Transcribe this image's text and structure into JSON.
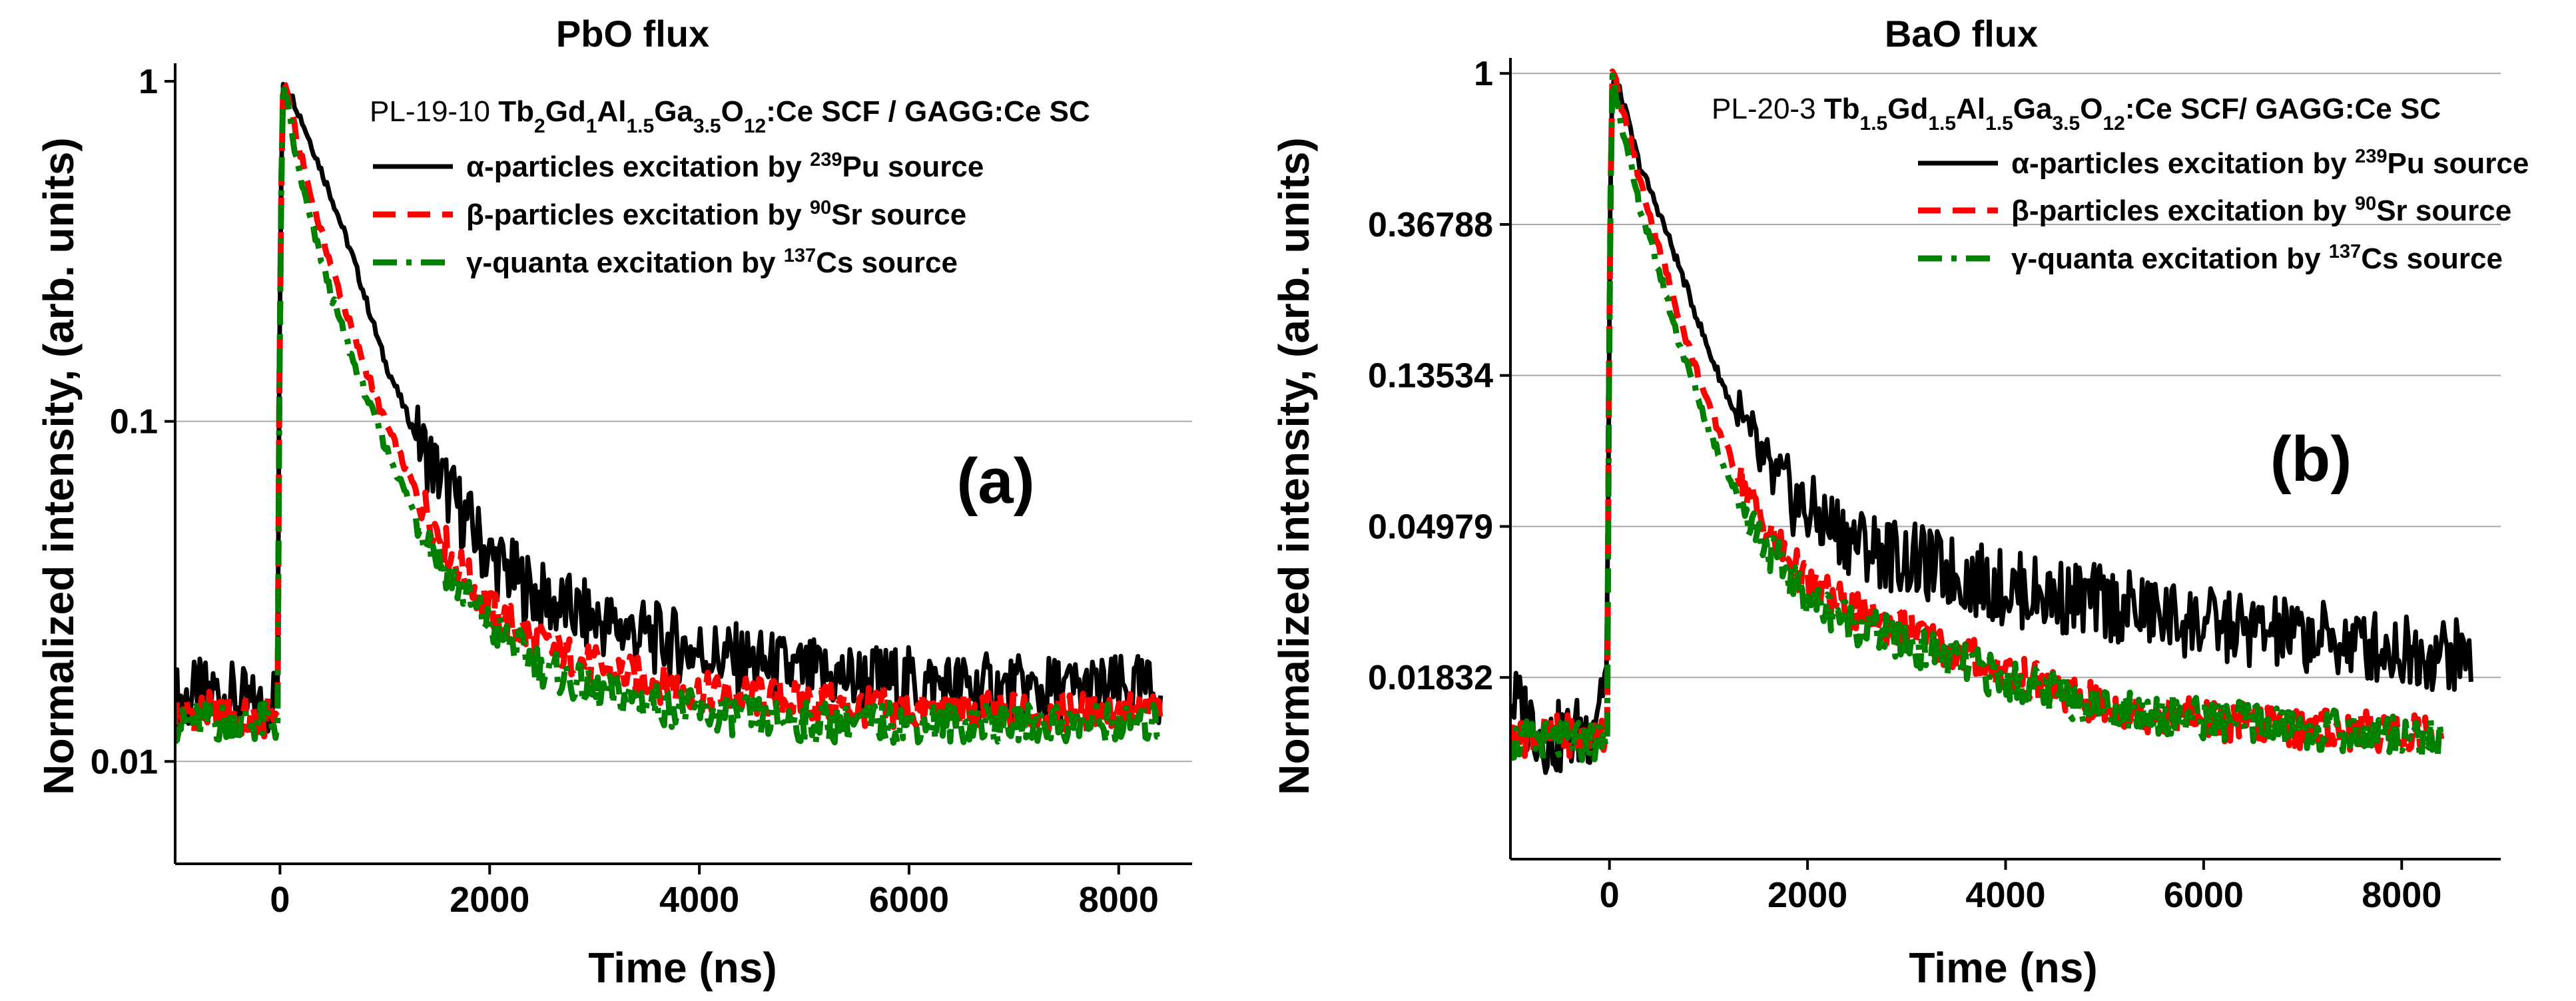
{
  "chart_data": [
    {
      "type": "line",
      "panel_label": "(a)",
      "title": "PbO flux",
      "xlabel": "Time (ns)",
      "ylabel": "Normalized intensity, (arb. units)",
      "xscale": "linear",
      "yscale": "log",
      "xlim": [
        -1000,
        8700
      ],
      "ylim": [
        0.005,
        1.08
      ],
      "x_ticks": [
        0,
        2000,
        4000,
        6000,
        8000
      ],
      "x_tick_labels": [
        "0",
        "2000",
        "4000",
        "6000",
        "8000"
      ],
      "y_ticks": [
        1,
        0.1,
        0.01
      ],
      "y_tick_labels": [
        "1",
        "0.1",
        "0.01"
      ],
      "grid": "horizontal",
      "sample_label": {
        "prefix": "PL-19-10 ",
        "formula": [
          {
            "t": "Tb",
            "s": ""
          },
          {
            "t": "2",
            "s": "sub"
          },
          {
            "t": "Gd",
            "s": ""
          },
          {
            "t": "1",
            "s": "sub"
          },
          {
            "t": "Al",
            "s": ""
          },
          {
            "t": "1.5",
            "s": "sub"
          },
          {
            "t": "Ga",
            "s": ""
          },
          {
            "t": "3.5",
            "s": "sub"
          },
          {
            "t": "O",
            "s": ""
          },
          {
            "t": "12",
            "s": "sub"
          },
          {
            "t": ":Ce SCF / GAGG:Ce SC",
            "s": ""
          }
        ]
      },
      "legend_position": "top-right",
      "series": [
        {
          "name": "alpha",
          "color": "#000000",
          "style": "solid",
          "legend": [
            {
              "t": "α-particles excitation by ",
              "s": ""
            },
            {
              "t": "239",
              "s": "sup"
            },
            {
              "t": "Pu source",
              "s": ""
            }
          ],
          "x": [
            -1000,
            -600,
            -200,
            -20,
            0,
            30,
            60,
            150,
            300,
            500,
            700,
            1000,
            1300,
            1600,
            2000,
            2500,
            3000,
            4000,
            5000,
            6000,
            7000,
            8000,
            8400
          ],
          "y": [
            0.015,
            0.016,
            0.014,
            0.016,
            0.35,
            1.0,
            0.97,
            0.85,
            0.65,
            0.45,
            0.3,
            0.15,
            0.09,
            0.063,
            0.04,
            0.03,
            0.026,
            0.021,
            0.018,
            0.017,
            0.016,
            0.016,
            0.016
          ]
        },
        {
          "name": "beta",
          "color": "#ff0000",
          "style": "dash",
          "legend": [
            {
              "t": "β-particles excitation by ",
              "s": ""
            },
            {
              "t": "90",
              "s": "sup"
            },
            {
              "t": "Sr source",
              "s": ""
            }
          ],
          "x": [
            -1000,
            -600,
            -200,
            -20,
            0,
            30,
            60,
            150,
            300,
            500,
            700,
            1000,
            1300,
            1600,
            2000,
            2500,
            3000,
            4000,
            5000,
            6000,
            7000,
            8000,
            8400
          ],
          "y": [
            0.014,
            0.014,
            0.013,
            0.014,
            0.3,
            1.0,
            0.95,
            0.7,
            0.45,
            0.28,
            0.18,
            0.1,
            0.062,
            0.042,
            0.028,
            0.022,
            0.019,
            0.016,
            0.015,
            0.014,
            0.014,
            0.014,
            0.014
          ]
        },
        {
          "name": "gamma",
          "color": "#008000",
          "style": "dashdot",
          "legend": [
            {
              "t": "γ-quanta excitation by ",
              "s": ""
            },
            {
              "t": "137",
              "s": "sup"
            },
            {
              "t": "Cs source",
              "s": ""
            }
          ],
          "x": [
            -1000,
            -600,
            -200,
            -20,
            0,
            30,
            60,
            150,
            300,
            500,
            700,
            1000,
            1300,
            1600,
            2000,
            2500,
            3000,
            4000,
            5000,
            6000,
            7000,
            8000,
            8400
          ],
          "y": [
            0.013,
            0.013,
            0.013,
            0.013,
            0.3,
            0.96,
            0.9,
            0.6,
            0.38,
            0.23,
            0.15,
            0.085,
            0.052,
            0.036,
            0.025,
            0.019,
            0.016,
            0.014,
            0.013,
            0.013,
            0.013,
            0.013,
            0.013
          ]
        }
      ]
    },
    {
      "type": "line",
      "panel_label": "(b)",
      "title": "BaO flux",
      "xlabel": "Time (ns)",
      "ylabel": "Normalized intensity, (arb. units)",
      "xscale": "linear",
      "yscale": "log",
      "xlim": [
        -1000,
        9000
      ],
      "ylim": [
        0.0055,
        1.06
      ],
      "x_ticks": [
        0,
        2000,
        4000,
        6000,
        8000
      ],
      "x_tick_labels": [
        "0",
        "2000",
        "4000",
        "6000",
        "8000"
      ],
      "y_ticks": [
        1,
        0.36788,
        0.13534,
        0.04979,
        0.01832
      ],
      "y_tick_labels": [
        "1",
        "0.36788",
        "0.13534",
        "0.04979",
        "0.01832"
      ],
      "grid": "horizontal",
      "sample_label": {
        "prefix": "PL-20-3 ",
        "formula": [
          {
            "t": "Tb",
            "s": ""
          },
          {
            "t": "1.5",
            "s": "sub"
          },
          {
            "t": "Gd",
            "s": ""
          },
          {
            "t": "1.5",
            "s": "sub"
          },
          {
            "t": "Al",
            "s": ""
          },
          {
            "t": "1.5",
            "s": "sub"
          },
          {
            "t": "Ga",
            "s": ""
          },
          {
            "t": "3.5",
            "s": "sub"
          },
          {
            "t": "O",
            "s": ""
          },
          {
            "t": "12",
            "s": "sub"
          },
          {
            "t": ":Ce SCF/ GAGG:Ce SC",
            "s": ""
          }
        ]
      },
      "legend_position": "top-right",
      "series": [
        {
          "name": "alpha",
          "color": "#000000",
          "style": "solid",
          "legend": [
            {
              "t": "α-particles excitation by ",
              "s": ""
            },
            {
              "t": "239",
              "s": "sup"
            },
            {
              "t": "Pu source",
              "s": ""
            }
          ],
          "x": [
            -1000,
            -600,
            -200,
            -20,
            0,
            30,
            60,
            150,
            300,
            500,
            700,
            1000,
            1300,
            1600,
            2000,
            2500,
            3000,
            4000,
            5000,
            6000,
            7000,
            8000,
            8700
          ],
          "y": [
            0.016,
            0.012,
            0.013,
            0.02,
            0.3,
            1.0,
            0.97,
            0.8,
            0.55,
            0.4,
            0.28,
            0.16,
            0.1,
            0.07,
            0.055,
            0.045,
            0.04,
            0.033,
            0.03,
            0.026,
            0.024,
            0.022,
            0.021
          ]
        },
        {
          "name": "beta",
          "color": "#ff0000",
          "style": "dash",
          "legend": [
            {
              "t": "β-particles excitation by ",
              "s": ""
            },
            {
              "t": "90",
              "s": "sup"
            },
            {
              "t": "Sr source",
              "s": ""
            }
          ],
          "x": [
            -1000,
            -600,
            -200,
            -20,
            0,
            30,
            60,
            150,
            300,
            500,
            700,
            1000,
            1300,
            1600,
            2000,
            2500,
            3000,
            4000,
            5000,
            6000,
            7000,
            8000,
            8400
          ],
          "y": [
            0.0125,
            0.0125,
            0.0125,
            0.013,
            0.3,
            1.0,
            0.95,
            0.75,
            0.5,
            0.32,
            0.2,
            0.11,
            0.07,
            0.048,
            0.034,
            0.028,
            0.025,
            0.019,
            0.015,
            0.014,
            0.013,
            0.0128,
            0.0125
          ]
        },
        {
          "name": "gamma",
          "color": "#008000",
          "style": "dashdot",
          "legend": [
            {
              "t": "γ-quanta excitation by ",
              "s": ""
            },
            {
              "t": "137",
              "s": "sup"
            },
            {
              "t": "Cs source",
              "s": ""
            }
          ],
          "x": [
            -1000,
            -600,
            -200,
            -20,
            0,
            30,
            60,
            150,
            300,
            500,
            700,
            1000,
            1300,
            1600,
            2000,
            2500,
            3000,
            4000,
            5000,
            6000,
            7000,
            8000,
            8400
          ],
          "y": [
            0.012,
            0.012,
            0.012,
            0.012,
            0.28,
            0.98,
            0.9,
            0.65,
            0.42,
            0.27,
            0.17,
            0.095,
            0.06,
            0.043,
            0.031,
            0.026,
            0.023,
            0.018,
            0.015,
            0.014,
            0.013,
            0.0125,
            0.012
          ]
        }
      ]
    }
  ]
}
